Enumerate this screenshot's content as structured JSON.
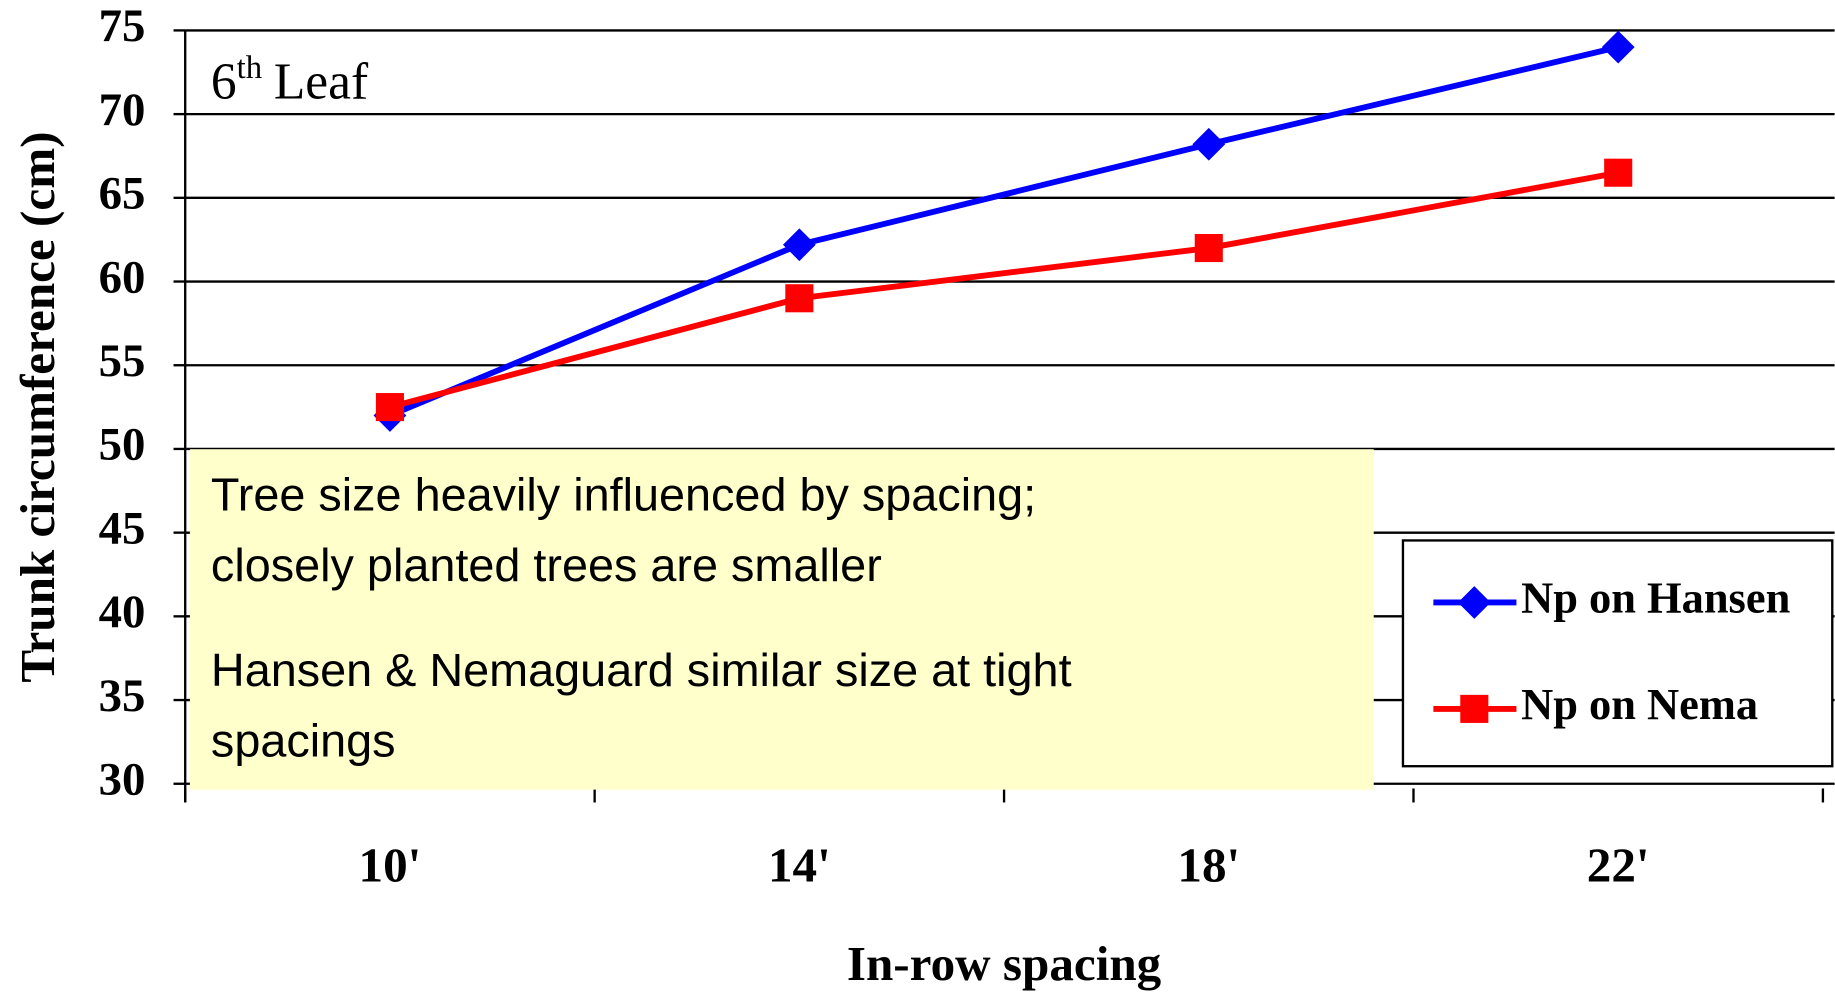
{
  "chart_data": {
    "type": "line",
    "panel_label": {
      "base": "6",
      "sup": "th",
      "rest": "Leaf"
    },
    "y_axis_label": "Trunk circumference (cm)",
    "x_axis_label": "In-row spacing",
    "categories": [
      "10'",
      "14'",
      "18'",
      "22'"
    ],
    "series": [
      {
        "name": "Np on Hansen",
        "color": "#0000ff",
        "marker": "diamond",
        "values": [
          52,
          62.2,
          68.2,
          74
        ]
      },
      {
        "name": "Np on Nema",
        "color": "#ff0000",
        "marker": "square",
        "values": [
          52.5,
          59,
          62,
          66.5
        ]
      }
    ],
    "ylim": [
      30,
      75
    ],
    "yticks": [
      30,
      35,
      40,
      45,
      50,
      55,
      60,
      65,
      70,
      75
    ],
    "grid": true,
    "legend": "lower right",
    "notes": [
      [
        "Tree size heavily influenced by spacing;",
        "closely planted trees are smaller"
      ],
      [
        "Hansen & Nemaguard similar size at tight",
        "spacings"
      ]
    ]
  }
}
